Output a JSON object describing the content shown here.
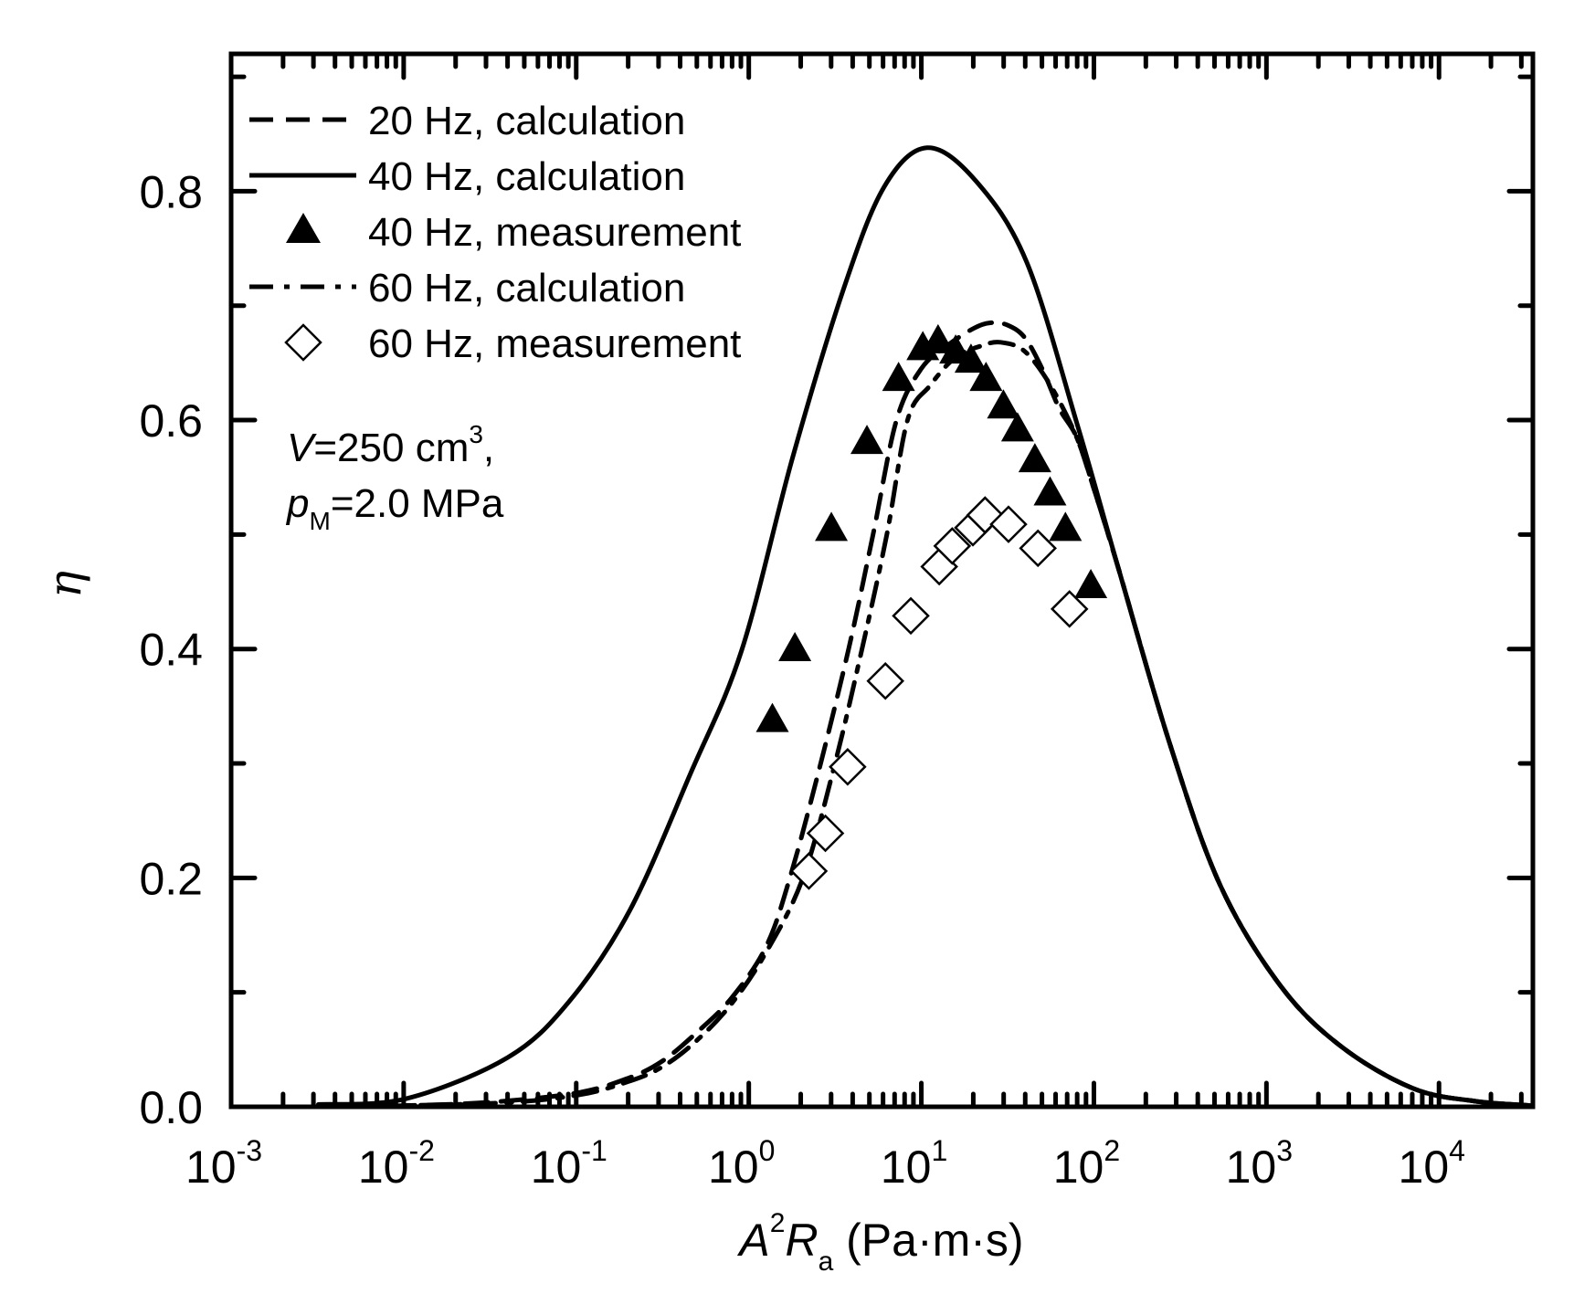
{
  "chart_data": {
    "type": "line",
    "title": "",
    "xlabel": {
      "A": "A",
      "sup": "2",
      "R": "R",
      "sub": "a",
      "units": " (Pa·m·s)"
    },
    "ylabel": "η",
    "xscale": "log",
    "xlim": [
      0.001,
      35000
    ],
    "ylim": [
      0,
      0.92
    ],
    "grid": false,
    "legend_position": "top-left",
    "x_ticks": [
      {
        "value": 0.001,
        "base": "10",
        "exp": "-3"
      },
      {
        "value": 0.01,
        "base": "10",
        "exp": "-2"
      },
      {
        "value": 0.1,
        "base": "10",
        "exp": "-1"
      },
      {
        "value": 1,
        "base": "10",
        "exp": "0"
      },
      {
        "value": 10,
        "base": "10",
        "exp": "1"
      },
      {
        "value": 100,
        "base": "10",
        "exp": "2"
      },
      {
        "value": 1000,
        "base": "10",
        "exp": "3"
      },
      {
        "value": 10000,
        "base": "10",
        "exp": "4"
      }
    ],
    "y_ticks": [
      {
        "value": 0.0,
        "label": "0.0"
      },
      {
        "value": 0.2,
        "label": "0.2"
      },
      {
        "value": 0.4,
        "label": "0.4"
      },
      {
        "value": 0.6,
        "label": "0.6"
      },
      {
        "value": 0.8,
        "label": "0.8"
      }
    ],
    "annotations": {
      "line1": {
        "var": "V",
        "text": "=250 cm",
        "sup": "3",
        "tail": ","
      },
      "line2": {
        "var": "p",
        "sub": "M",
        "text": "=2.0 MPa"
      }
    },
    "series": [
      {
        "name": "20 Hz, calculation",
        "kind": "line",
        "style": "dashed",
        "x": [
          0.0032,
          0.01,
          0.0316,
          0.1,
          0.2,
          0.316,
          0.5,
          0.794,
          1.26,
          1.73,
          2.51,
          3.79,
          5.25,
          7.18,
          10,
          14.1,
          20,
          25.1,
          31.6,
          39.8,
          50.1,
          63.1,
          79.4,
          100,
          139,
          273,
          538,
          1216,
          2748,
          7096,
          16032,
          34700
        ],
        "y": [
          0,
          0.001,
          0.004,
          0.012,
          0.025,
          0.04,
          0.065,
          0.095,
          0.14,
          0.2,
          0.29,
          0.4,
          0.5,
          0.6,
          0.645,
          0.665,
          0.68,
          0.685,
          0.683,
          0.672,
          0.645,
          0.61,
          0.585,
          0.54,
          0.47,
          0.319,
          0.194,
          0.105,
          0.052,
          0.016,
          0.005,
          0.001
        ]
      },
      {
        "name": "40 Hz, calculation",
        "kind": "line",
        "style": "solid",
        "x": [
          0.0032,
          0.0103,
          0.04,
          0.091,
          0.205,
          0.462,
          0.91,
          1.8,
          3.55,
          6.1,
          10.8,
          20.7,
          40.8,
          80.5,
          139,
          273,
          538,
          1216,
          2748,
          7096,
          16032,
          34700
        ],
        "y": [
          0.002,
          0.007,
          0.043,
          0.092,
          0.172,
          0.292,
          0.399,
          0.568,
          0.715,
          0.804,
          0.838,
          0.809,
          0.738,
          0.595,
          0.47,
          0.319,
          0.194,
          0.105,
          0.052,
          0.016,
          0.005,
          0.001
        ]
      },
      {
        "name": "40 Hz, measurement",
        "kind": "scatter",
        "marker": "filled-triangle",
        "x": [
          1.37,
          1.85,
          3.01,
          4.84,
          7.38,
          10.2,
          12.5,
          15.8,
          19.4,
          23.7,
          29.9,
          36.1,
          45.5,
          55.7,
          68.4,
          96
        ],
        "y": [
          0.337,
          0.399,
          0.504,
          0.58,
          0.635,
          0.662,
          0.668,
          0.659,
          0.651,
          0.635,
          0.611,
          0.591,
          0.564,
          0.535,
          0.504,
          0.454
        ]
      },
      {
        "name": "60 Hz, calculation",
        "kind": "line",
        "style": "dash-dot",
        "x": [
          0.0032,
          0.0316,
          0.1,
          0.2,
          0.316,
          0.5,
          0.794,
          1.26,
          2.06,
          3.16,
          4.53,
          6.31,
          8.32,
          11.2,
          15.8,
          22.4,
          28.8,
          39.8,
          56.2,
          79.4,
          100,
          139,
          273,
          538,
          1216,
          2748,
          7096,
          16032,
          34700
        ],
        "y": [
          0,
          0.003,
          0.01,
          0.022,
          0.035,
          0.058,
          0.09,
          0.135,
          0.2,
          0.3,
          0.4,
          0.5,
          0.6,
          0.63,
          0.655,
          0.665,
          0.668,
          0.66,
          0.63,
          0.585,
          0.54,
          0.47,
          0.319,
          0.194,
          0.105,
          0.052,
          0.016,
          0.005,
          0.001
        ]
      },
      {
        "name": "60 Hz, measurement",
        "kind": "scatter",
        "marker": "open-diamond",
        "x": [
          2.23,
          2.78,
          3.74,
          6.19,
          8.69,
          12.7,
          15.1,
          19.9,
          23.4,
          32.0,
          47.4,
          72.2
        ],
        "y": [
          0.206,
          0.239,
          0.297,
          0.372,
          0.429,
          0.472,
          0.49,
          0.506,
          0.517,
          0.509,
          0.488,
          0.435
        ]
      }
    ]
  }
}
